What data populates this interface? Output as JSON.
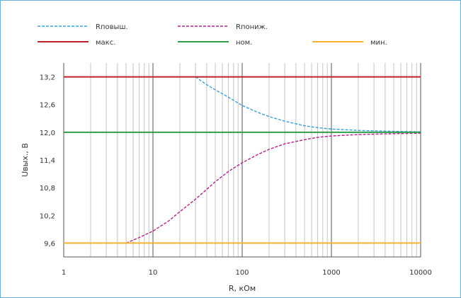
{
  "chart_data": {
    "type": "line",
    "title": "",
    "xlabel": "R, кОм",
    "ylabel": "Uвых., В",
    "x_scale": "log",
    "xlim": [
      1,
      10000
    ],
    "ylim": [
      9.3,
      13.5
    ],
    "x_ticks": [
      "1",
      "10",
      "100",
      "1000",
      "10000"
    ],
    "y_ticks": [
      "9,6",
      "10,2",
      "10,8",
      "11,4",
      "12,0",
      "12,6",
      "13,2"
    ],
    "grid": {
      "x_major": true,
      "x_minor": true,
      "y": false
    },
    "legend_position": "top",
    "series": [
      {
        "name": "Rповыш.",
        "color": "#3aa0d8",
        "style": "dashed",
        "points": [
          [
            30,
            13.2
          ],
          [
            40,
            13.03
          ],
          [
            50,
            12.92
          ],
          [
            70,
            12.76
          ],
          [
            100,
            12.58
          ],
          [
            150,
            12.43
          ],
          [
            200,
            12.34
          ],
          [
            300,
            12.24
          ],
          [
            500,
            12.14
          ],
          [
            700,
            12.1
          ],
          [
            1000,
            12.07
          ],
          [
            2000,
            12.04
          ],
          [
            5000,
            12.02
          ],
          [
            10000,
            12.01
          ]
        ]
      },
      {
        "name": "Rпониж.",
        "color": "#b0228a",
        "style": "dashed",
        "points": [
          [
            5,
            9.6
          ],
          [
            7,
            9.72
          ],
          [
            10,
            9.86
          ],
          [
            15,
            10.08
          ],
          [
            20,
            10.28
          ],
          [
            30,
            10.55
          ],
          [
            50,
            10.93
          ],
          [
            70,
            11.15
          ],
          [
            100,
            11.34
          ],
          [
            150,
            11.52
          ],
          [
            200,
            11.63
          ],
          [
            300,
            11.75
          ],
          [
            500,
            11.84
          ],
          [
            700,
            11.89
          ],
          [
            1000,
            11.92
          ],
          [
            2000,
            11.95
          ],
          [
            5000,
            11.97
          ],
          [
            10000,
            11.98
          ]
        ]
      },
      {
        "name": "макс.",
        "color": "#c0202a",
        "style": "solid",
        "points": [
          [
            1,
            13.2
          ],
          [
            10000,
            13.2
          ]
        ]
      },
      {
        "name": "ном.",
        "color": "#2e9e48",
        "style": "solid",
        "points": [
          [
            1,
            12.0
          ],
          [
            10000,
            12.0
          ]
        ]
      },
      {
        "name": "мин.",
        "color": "#f5b12e",
        "style": "solid",
        "points": [
          [
            1,
            9.6
          ],
          [
            10000,
            9.6
          ]
        ]
      }
    ]
  }
}
